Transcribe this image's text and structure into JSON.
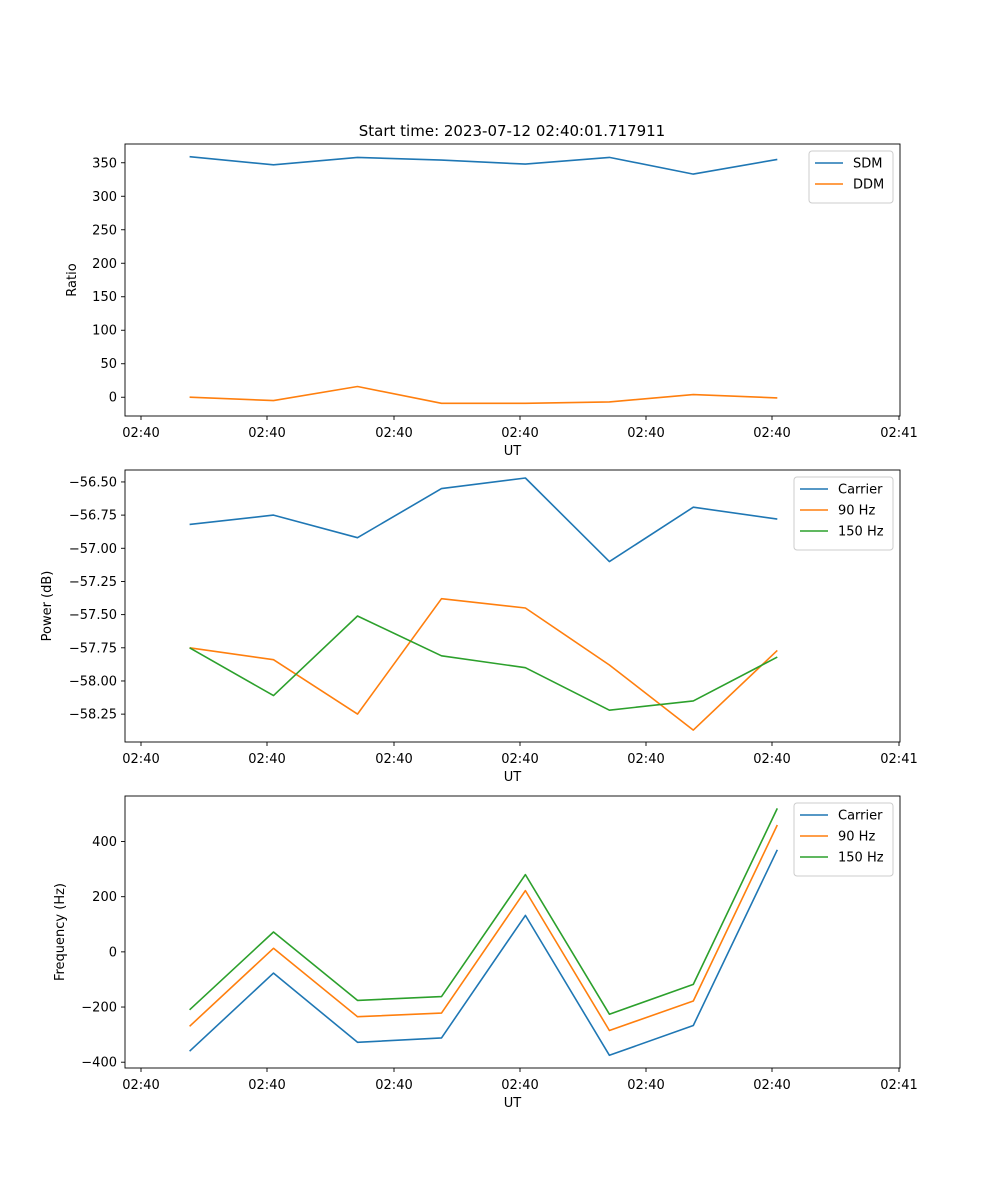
{
  "title": "Start time: 2023-07-12 02:40:01.717911",
  "chart_data": [
    {
      "type": "line",
      "title": "Start time: 2023-07-12 02:40:01.717911",
      "xlabel": "UT",
      "ylabel": "Ratio",
      "x_tick_labels": [
        "02:40",
        "02:40",
        "02:40",
        "02:40",
        "02:40",
        "02:40",
        "02:41"
      ],
      "y_ticks": [
        0,
        50,
        100,
        150,
        200,
        250,
        300,
        350
      ],
      "y_tick_labels": [
        "0",
        "50",
        "100",
        "150",
        "200",
        "250",
        "300",
        "350"
      ],
      "xlim": [
        0,
        6
      ],
      "ylim": [
        -28,
        378
      ],
      "x": [
        0.5,
        1.15,
        1.8,
        2.45,
        3.1,
        3.75,
        4.4,
        5.05
      ],
      "legend": "top-right",
      "series": [
        {
          "name": "SDM",
          "color": "#1f77b4",
          "values": [
            359,
            347,
            358,
            354,
            348,
            358,
            333,
            355
          ]
        },
        {
          "name": "DDM",
          "color": "#ff7f0e",
          "values": [
            0,
            -5,
            16,
            -9,
            -9,
            -7,
            4,
            -1
          ]
        }
      ]
    },
    {
      "type": "line",
      "title": "",
      "xlabel": "UT",
      "ylabel": "Power (dB)",
      "x_tick_labels": [
        "02:40",
        "02:40",
        "02:40",
        "02:40",
        "02:40",
        "02:40",
        "02:41"
      ],
      "y_ticks": [
        -58.25,
        -58.0,
        -57.75,
        -57.5,
        -57.25,
        -57.0,
        -56.75,
        -56.5
      ],
      "y_tick_labels": [
        "−58.25",
        "−58.00",
        "−57.75",
        "−57.50",
        "−57.25",
        "−57.00",
        "−56.75",
        "−56.50"
      ],
      "xlim": [
        0,
        6
      ],
      "ylim": [
        -58.46,
        -56.41
      ],
      "x": [
        0.5,
        1.15,
        1.8,
        2.45,
        3.1,
        3.75,
        4.4,
        5.05
      ],
      "legend": "top-right",
      "series": [
        {
          "name": "Carrier",
          "color": "#1f77b4",
          "values": [
            -56.82,
            -56.75,
            -56.92,
            -56.55,
            -56.47,
            -57.1,
            -56.69,
            -56.78
          ]
        },
        {
          "name": "90 Hz",
          "color": "#ff7f0e",
          "values": [
            -57.75,
            -57.84,
            -58.25,
            -57.38,
            -57.45,
            -57.88,
            -58.37,
            -57.77
          ]
        },
        {
          "name": "150 Hz",
          "color": "#2ca02c",
          "values": [
            -57.75,
            -58.11,
            -57.51,
            -57.81,
            -57.9,
            -58.22,
            -58.15,
            -57.82
          ]
        }
      ]
    },
    {
      "type": "line",
      "title": "",
      "xlabel": "UT",
      "ylabel": "Frequency (Hz)",
      "x_tick_labels": [
        "02:40",
        "02:40",
        "02:40",
        "02:40",
        "02:40",
        "02:40",
        "02:41"
      ],
      "y_ticks": [
        -400,
        -200,
        0,
        200,
        400
      ],
      "y_tick_labels": [
        "−400",
        "−200",
        "0",
        "200",
        "400"
      ],
      "xlim": [
        0,
        6
      ],
      "ylim": [
        -421,
        565
      ],
      "x": [
        0.5,
        1.15,
        1.8,
        2.45,
        3.1,
        3.75,
        4.4,
        5.05
      ],
      "legend": "top-right",
      "series": [
        {
          "name": "Carrier",
          "color": "#1f77b4",
          "values": [
            -360,
            -77,
            -328,
            -312,
            132,
            -375,
            -267,
            370
          ]
        },
        {
          "name": "90 Hz",
          "color": "#ff7f0e",
          "values": [
            -270,
            13,
            -235,
            -222,
            222,
            -285,
            -178,
            460
          ]
        },
        {
          "name": "150 Hz",
          "color": "#2ca02c",
          "values": [
            -210,
            72,
            -176,
            -162,
            280,
            -226,
            -118,
            520
          ]
        }
      ]
    }
  ]
}
